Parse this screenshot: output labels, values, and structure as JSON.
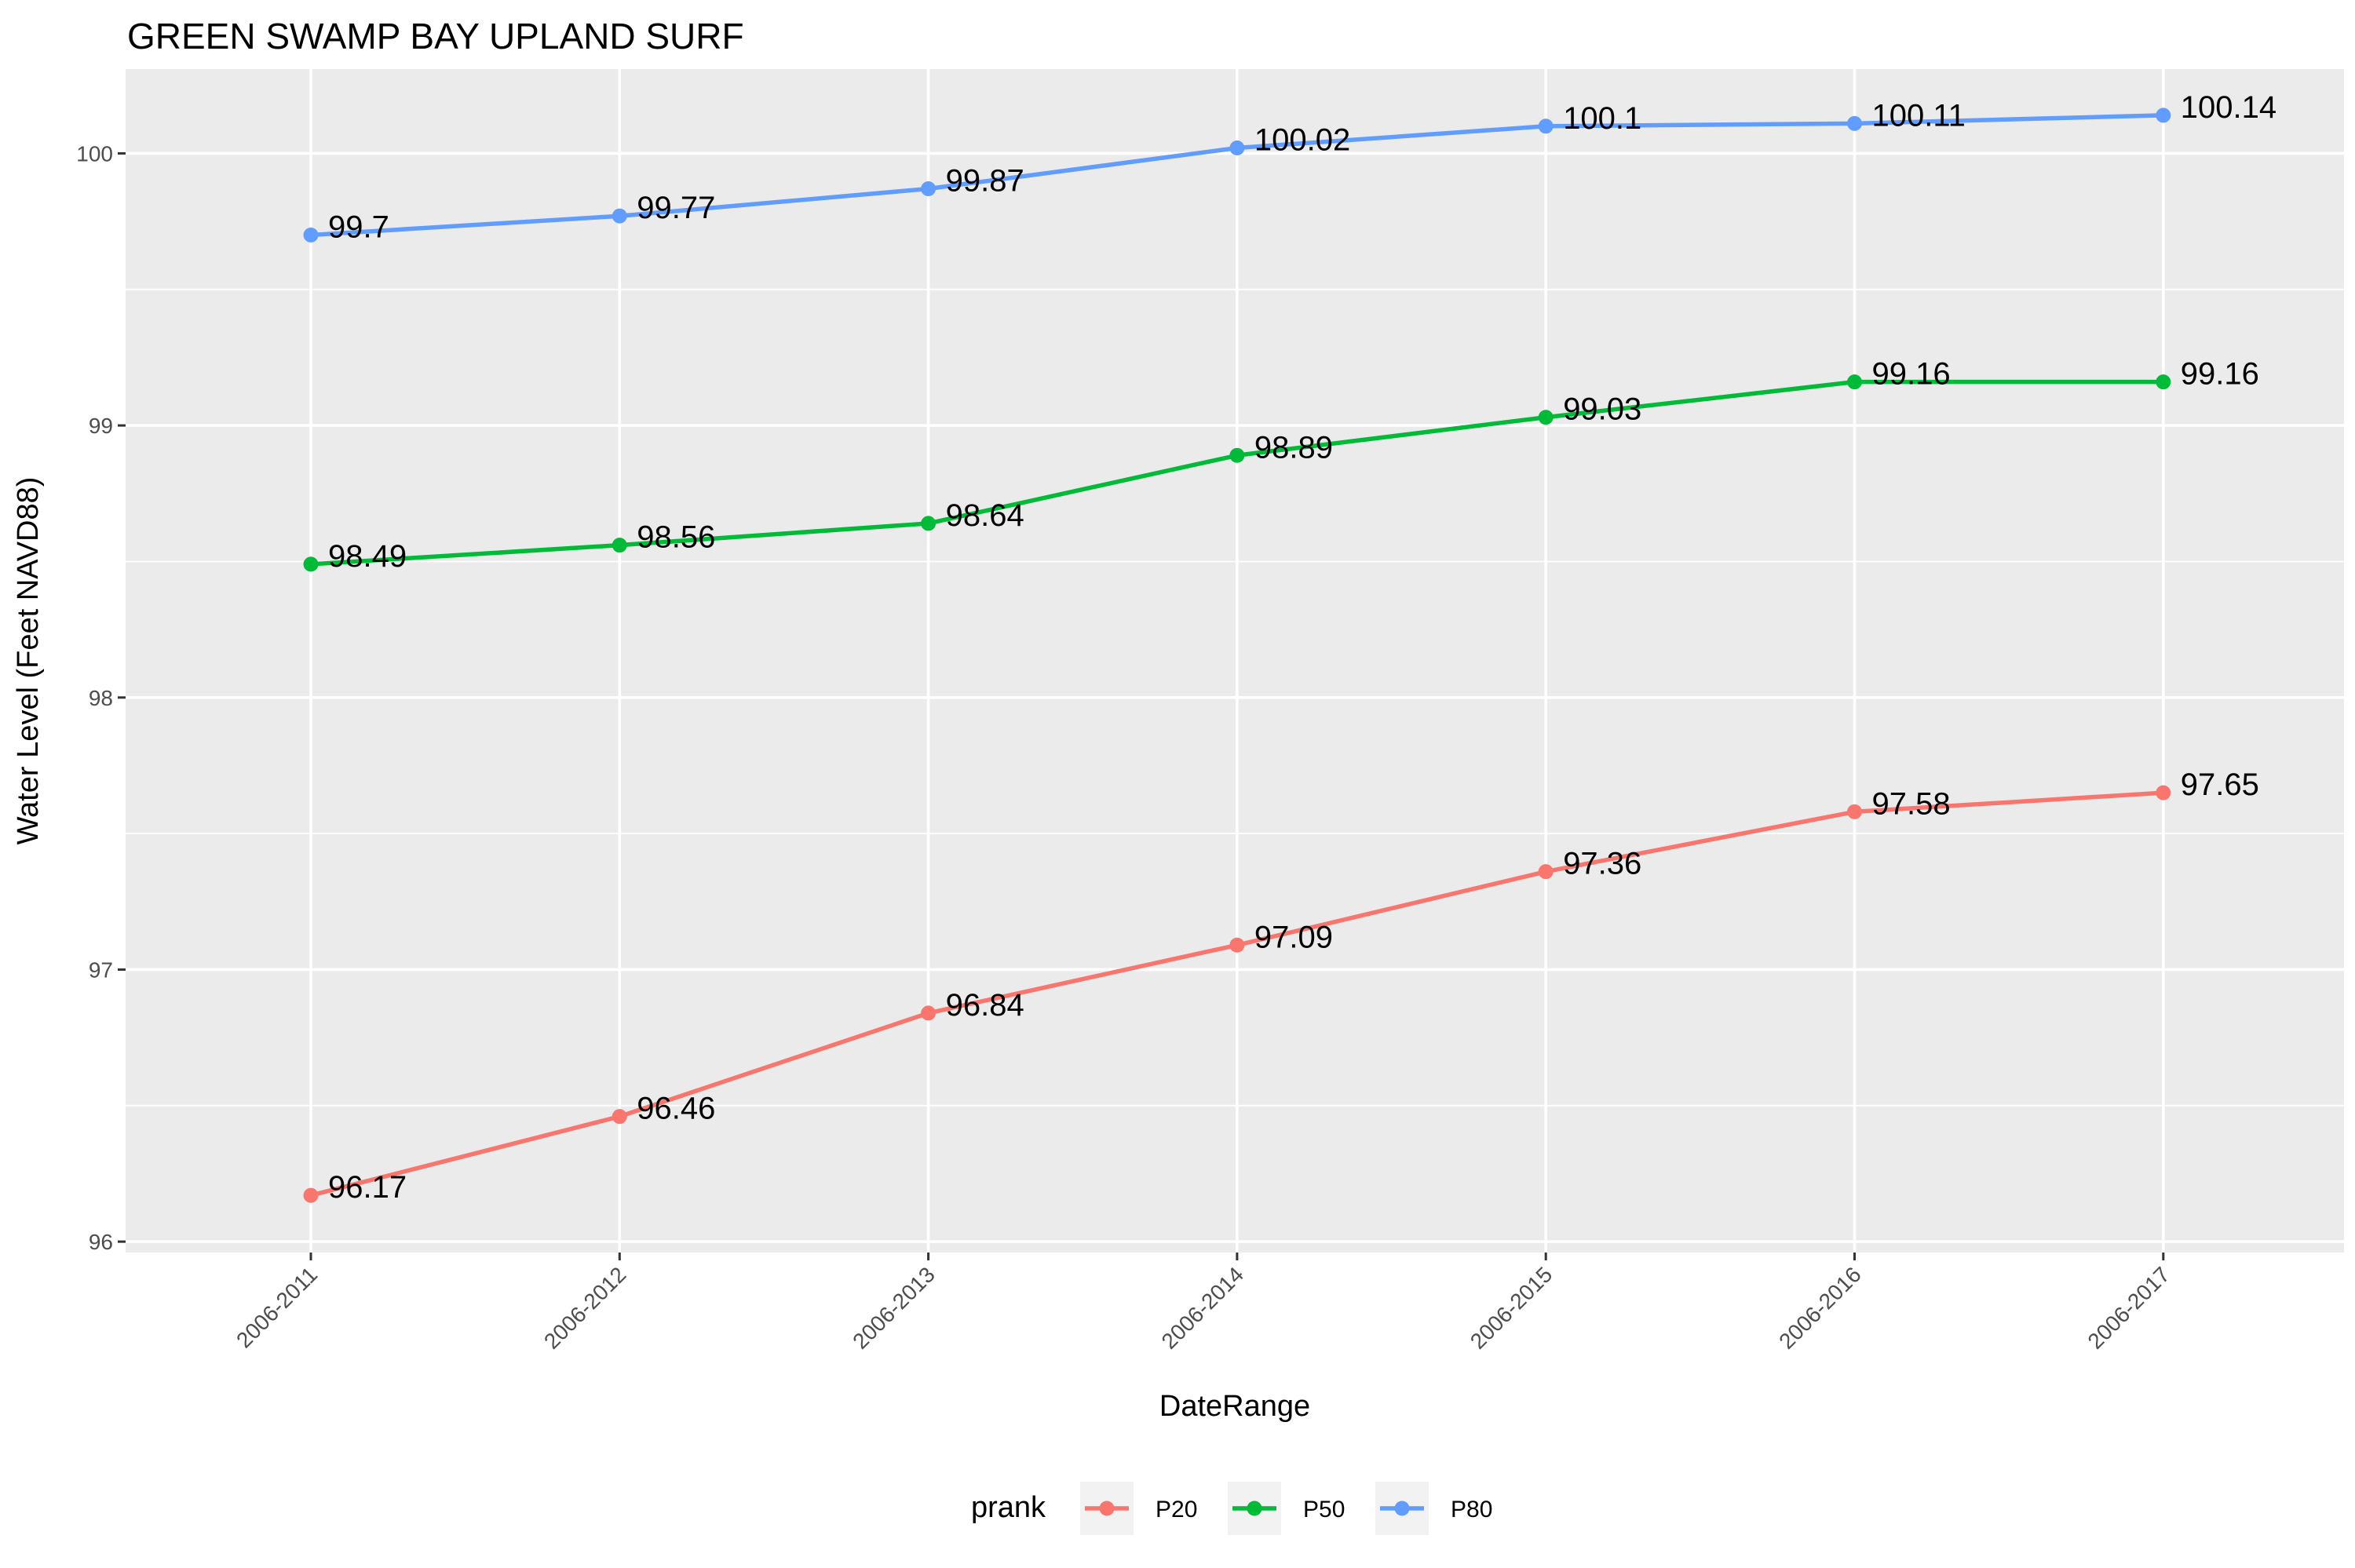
{
  "chart_data": {
    "type": "line",
    "title": "GREEN SWAMP BAY UPLAND SURF",
    "xlabel": "DateRange",
    "ylabel": "Water Level (Feet NAVD88)",
    "categories": [
      "2006-2011",
      "2006-2012",
      "2006-2013",
      "2006-2014",
      "2006-2015",
      "2006-2016",
      "2006-2017"
    ],
    "ylim": [
      95.96,
      100.31
    ],
    "y_ticks": [
      96,
      97,
      98,
      99,
      100
    ],
    "y_tick_labels": [
      "96",
      "97",
      "98",
      "99",
      "100"
    ],
    "grid": true,
    "legend": {
      "title": "prank",
      "position": "bottom"
    },
    "series": [
      {
        "name": "P20",
        "color": "#F8766D",
        "values": [
          96.17,
          96.46,
          96.84,
          97.09,
          97.36,
          97.58,
          97.65
        ],
        "labels": [
          "96.17",
          "96.46",
          "96.84",
          "97.09",
          "97.36",
          "97.58",
          "97.65"
        ]
      },
      {
        "name": "P50",
        "color": "#00BA38",
        "values": [
          98.49,
          98.56,
          98.64,
          98.89,
          99.03,
          99.16,
          99.16
        ],
        "labels": [
          "98.49",
          "98.56",
          "98.64",
          "98.89",
          "99.03",
          "99.16",
          "99.16"
        ]
      },
      {
        "name": "P80",
        "color": "#619CFF",
        "values": [
          99.7,
          99.77,
          99.87,
          100.02,
          100.1,
          100.11,
          100.14
        ],
        "labels": [
          "99.7",
          "99.77",
          "99.87",
          "100.02",
          "100.1",
          "100.11",
          "100.14"
        ]
      }
    ]
  }
}
